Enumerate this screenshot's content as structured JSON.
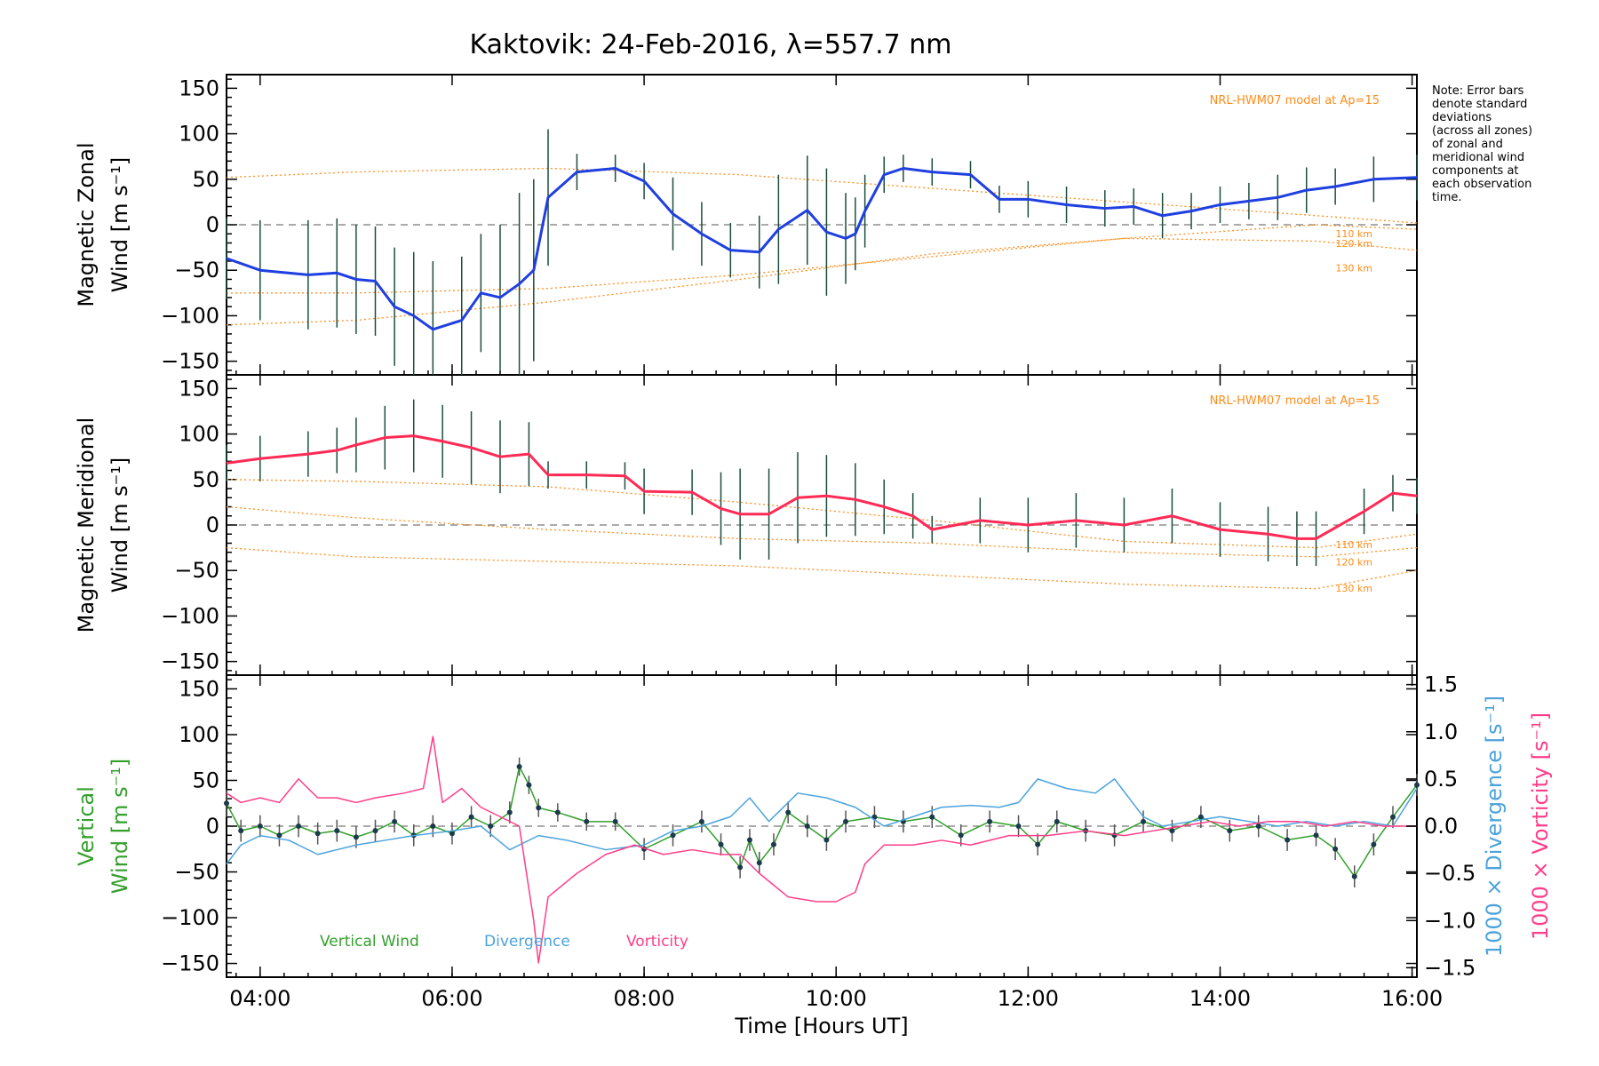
{
  "title": "Kaktovik: 24-Feb-2016, λ=557.7 nm",
  "note": [
    "Note: Error bars",
    "denote standard",
    "deviations",
    "(across all zones)",
    "of zonal and",
    "meridional wind",
    "components at",
    "each observation",
    "time."
  ],
  "model_label": "NRL-HWM07 model at Ap=15",
  "altitude_labels": [
    "110 km",
    "120 km",
    "130 km"
  ],
  "xlabel": "Time [Hours UT]",
  "xticks": [
    "04:00",
    "06:00",
    "08:00",
    "10:00",
    "12:00",
    "14:00",
    "16:00"
  ],
  "yticks_left": [
    "150",
    "100",
    "50",
    "0",
    "−50",
    "−100",
    "−150"
  ],
  "yticks_right": [
    "1.5",
    "1.0",
    "0.5",
    "0.0",
    "−0.5",
    "−1.0",
    "−1.5"
  ],
  "panels": {
    "zonal": {
      "ylabel_line1": "Magnetic Zonal",
      "ylabel_line2": "Wind [m s⁻¹]"
    },
    "meridional": {
      "ylabel_line1": "Magnetic Meridional",
      "ylabel_line2": "Wind [m s⁻¹]"
    },
    "vertical": {
      "ylabel_line1": "Vertical",
      "ylabel_line2": "Wind [m s⁻¹]",
      "right_label1": "1000 × Divergence [s⁻¹]",
      "right_label2": "1000 × Vorticity [s⁻¹]"
    }
  },
  "legend": [
    "Vertical Wind",
    "Divergence",
    "Vorticity"
  ],
  "colors": {
    "zonal": "#1f3fe0",
    "meridional": "#ff2a55",
    "vertical": "#33a02c",
    "divergence": "#4ba3dc",
    "vorticity": "#ff3d8a",
    "model": "#ff8c1a",
    "errorbar": "#1b4d3e",
    "scatter": "#9a9ae8"
  },
  "chart_data": [
    {
      "type": "line",
      "panel": "zonal",
      "xlim": [
        3.65,
        16.05
      ],
      "ylim": [
        -165,
        165
      ],
      "grid": false,
      "series": [
        {
          "values_x": [
            3.65,
            4.0,
            4.5,
            4.8,
            5.0,
            5.2,
            5.4,
            5.6,
            5.8,
            6.1,
            6.3,
            6.5,
            6.7,
            6.85,
            7.0,
            7.3,
            7.7,
            8.0,
            8.3,
            8.6,
            8.9,
            9.2,
            9.4,
            9.7,
            9.9,
            10.1,
            10.2,
            10.3,
            10.5,
            10.7,
            11.0,
            11.4,
            11.7,
            12.0,
            12.4,
            12.8,
            13.1,
            13.4,
            13.7,
            14.0,
            14.3,
            14.6,
            14.9,
            15.2,
            15.6,
            16.05
          ],
          "values_y": [
            -37,
            -50,
            -55,
            -53,
            -60,
            -62,
            -90,
            -100,
            -115,
            -105,
            -75,
            -80,
            -65,
            -50,
            30,
            58,
            62,
            48,
            12,
            -10,
            -28,
            -30,
            -5,
            16,
            -8,
            -15,
            -10,
            15,
            55,
            62,
            58,
            55,
            28,
            28,
            22,
            18,
            20,
            10,
            15,
            22,
            26,
            30,
            38,
            42,
            50,
            52
          ],
          "errorbar_sd": [
            45,
            55,
            60,
            60,
            60,
            60,
            65,
            70,
            75,
            70,
            65,
            80,
            100,
            100,
            75,
            20,
            15,
            20,
            40,
            35,
            30,
            40,
            60,
            60,
            70,
            50,
            40,
            40,
            20,
            15,
            15,
            15,
            15,
            20,
            20,
            20,
            20,
            25,
            20,
            20,
            20,
            25,
            25,
            20,
            25,
            25
          ]
        }
      ],
      "models": [
        {
          "name": "110 km",
          "values_x": [
            3.65,
            5,
            7,
            9,
            11,
            13,
            15,
            16.05
          ],
          "values_y": [
            52,
            58,
            62,
            55,
            40,
            25,
            10,
            2
          ]
        },
        {
          "name": "120 km",
          "values_x": [
            3.65,
            5,
            7,
            9,
            11,
            13,
            15,
            16.05
          ],
          "values_y": [
            -75,
            -75,
            -70,
            -55,
            -35,
            -15,
            0,
            -5
          ]
        },
        {
          "name": "130 km",
          "values_x": [
            3.65,
            5,
            7,
            9,
            11,
            13,
            15,
            16.05
          ],
          "values_y": [
            -110,
            -105,
            -85,
            -60,
            -32,
            -15,
            -18,
            -28
          ]
        }
      ]
    },
    {
      "type": "line",
      "panel": "meridional",
      "xlim": [
        3.65,
        16.05
      ],
      "ylim": [
        -165,
        165
      ],
      "grid": false,
      "series": [
        {
          "values_x": [
            3.65,
            4.0,
            4.5,
            4.8,
            5.0,
            5.3,
            5.6,
            5.9,
            6.2,
            6.5,
            6.8,
            7.0,
            7.4,
            7.8,
            8.0,
            8.5,
            8.8,
            9.0,
            9.3,
            9.6,
            9.9,
            10.2,
            10.5,
            10.8,
            11.0,
            11.5,
            12.0,
            12.5,
            13.0,
            13.5,
            14.0,
            14.5,
            14.8,
            15.0,
            15.5,
            15.8,
            16.05
          ],
          "values_y": [
            68,
            73,
            78,
            82,
            88,
            96,
            98,
            92,
            85,
            75,
            78,
            55,
            55,
            54,
            37,
            36,
            18,
            12,
            12,
            30,
            32,
            28,
            20,
            10,
            -5,
            5,
            0,
            5,
            0,
            10,
            -5,
            -10,
            -15,
            -15,
            15,
            35,
            32
          ],
          "errorbar_sd": [
            20,
            25,
            25,
            25,
            30,
            35,
            40,
            40,
            40,
            40,
            35,
            15,
            15,
            15,
            25,
            25,
            40,
            50,
            50,
            50,
            45,
            40,
            30,
            25,
            15,
            25,
            30,
            30,
            30,
            30,
            30,
            30,
            30,
            30,
            25,
            20,
            20
          ]
        }
      ],
      "models": [
        {
          "name": "110 km",
          "values_x": [
            3.65,
            5,
            7,
            9,
            11,
            13,
            15,
            16.05
          ],
          "values_y": [
            50,
            48,
            42,
            25,
            5,
            -18,
            -25,
            -10
          ]
        },
        {
          "name": "120 km",
          "values_x": [
            3.65,
            5,
            7,
            9,
            11,
            13,
            15,
            16.05
          ],
          "values_y": [
            20,
            8,
            -5,
            -15,
            -20,
            -30,
            -35,
            -25
          ]
        },
        {
          "name": "130 km",
          "values_x": [
            3.65,
            5,
            7,
            9,
            11,
            13,
            15,
            16.05
          ],
          "values_y": [
            -25,
            -35,
            -40,
            -45,
            -55,
            -65,
            -70,
            -50
          ]
        }
      ]
    },
    {
      "type": "line",
      "panel": "vertical",
      "xlim": [
        3.65,
        16.05
      ],
      "ylim": [
        -165,
        165
      ],
      "y2lim": [
        -1.6,
        1.6
      ],
      "grid": false,
      "series": [
        {
          "name": "Vertical Wind",
          "axis": "left",
          "values_x": [
            3.65,
            3.8,
            4.0,
            4.2,
            4.4,
            4.6,
            4.8,
            5.0,
            5.2,
            5.4,
            5.6,
            5.8,
            6.0,
            6.2,
            6.4,
            6.6,
            6.7,
            6.8,
            6.9,
            7.1,
            7.4,
            7.7,
            8.0,
            8.3,
            8.6,
            8.8,
            9.0,
            9.1,
            9.2,
            9.35,
            9.5,
            9.7,
            9.9,
            10.1,
            10.4,
            10.7,
            11.0,
            11.3,
            11.6,
            11.9,
            12.1,
            12.3,
            12.6,
            12.9,
            13.2,
            13.5,
            13.8,
            14.1,
            14.4,
            14.7,
            15.0,
            15.2,
            15.4,
            15.6,
            15.8,
            16.05
          ],
          "values_y": [
            25,
            -5,
            0,
            -10,
            0,
            -8,
            -5,
            -12,
            -5,
            5,
            -10,
            0,
            -8,
            10,
            0,
            15,
            65,
            45,
            20,
            15,
            5,
            5,
            -25,
            -10,
            5,
            -20,
            -45,
            -15,
            -40,
            -20,
            15,
            0,
            -15,
            5,
            10,
            5,
            10,
            -10,
            5,
            0,
            -20,
            5,
            -5,
            -10,
            5,
            -5,
            10,
            -5,
            0,
            -15,
            -10,
            -25,
            -55,
            -20,
            10,
            45
          ],
          "errorbar_sd": [
            15,
            12,
            12,
            12,
            12,
            12,
            12,
            12,
            12,
            12,
            12,
            12,
            12,
            12,
            12,
            12,
            10,
            10,
            10,
            10,
            10,
            10,
            12,
            12,
            12,
            12,
            12,
            12,
            12,
            12,
            12,
            12,
            12,
            12,
            12,
            12,
            12,
            12,
            12,
            12,
            12,
            12,
            12,
            12,
            12,
            12,
            12,
            12,
            12,
            12,
            12,
            12,
            12,
            12,
            12,
            12
          ]
        },
        {
          "name": "Divergence",
          "axis": "right",
          "values_x": [
            3.65,
            3.8,
            4.0,
            4.3,
            4.6,
            5.0,
            5.3,
            5.6,
            6.0,
            6.3,
            6.6,
            6.9,
            7.2,
            7.6,
            8.0,
            8.3,
            8.6,
            8.9,
            9.1,
            9.3,
            9.6,
            9.9,
            10.2,
            10.5,
            10.8,
            11.1,
            11.4,
            11.7,
            11.9,
            12.1,
            12.4,
            12.7,
            12.9,
            13.2,
            13.4,
            13.7,
            14.0,
            14.3,
            14.6,
            14.9,
            15.2,
            15.5,
            15.8,
            16.05
          ],
          "values_y": [
            -0.4,
            -0.2,
            -0.1,
            -0.15,
            -0.3,
            -0.2,
            -0.15,
            -0.1,
            -0.05,
            0.0,
            -0.25,
            -0.1,
            -0.15,
            -0.25,
            -0.2,
            -0.05,
            0.0,
            0.1,
            0.3,
            0.05,
            0.35,
            0.3,
            0.2,
            0.0,
            0.1,
            0.2,
            0.22,
            0.2,
            0.25,
            0.5,
            0.4,
            0.35,
            0.5,
            0.1,
            0.0,
            0.05,
            0.1,
            0.05,
            0.0,
            0.05,
            0.0,
            0.05,
            0.0,
            0.4
          ]
        },
        {
          "name": "Vorticity",
          "axis": "right",
          "values_x": [
            3.65,
            3.8,
            4.0,
            4.2,
            4.4,
            4.6,
            4.8,
            5.0,
            5.2,
            5.5,
            5.7,
            5.8,
            5.9,
            6.1,
            6.3,
            6.5,
            6.7,
            6.85,
            6.9,
            7.0,
            7.3,
            7.6,
            7.9,
            8.2,
            8.5,
            8.8,
            9.0,
            9.2,
            9.5,
            9.8,
            10.0,
            10.2,
            10.3,
            10.5,
            10.8,
            11.1,
            11.4,
            11.8,
            12.2,
            12.6,
            13.0,
            13.3,
            13.6,
            13.9,
            14.2,
            14.5,
            14.8,
            15.1,
            15.4,
            15.7,
            16.05
          ],
          "values_y": [
            0.35,
            0.25,
            0.3,
            0.25,
            0.5,
            0.3,
            0.3,
            0.25,
            0.3,
            0.35,
            0.4,
            0.95,
            0.25,
            0.4,
            0.2,
            0.1,
            0.0,
            -1.0,
            -1.45,
            -0.75,
            -0.5,
            -0.3,
            -0.2,
            -0.3,
            -0.25,
            -0.3,
            -0.3,
            -0.5,
            -0.75,
            -0.8,
            -0.8,
            -0.7,
            -0.4,
            -0.2,
            -0.2,
            -0.15,
            -0.2,
            -0.1,
            -0.1,
            -0.05,
            -0.1,
            -0.05,
            0.0,
            0.05,
            0.0,
            0.05,
            0.05,
            0.0,
            0.05,
            0.0,
            0.0
          ]
        }
      ]
    }
  ]
}
